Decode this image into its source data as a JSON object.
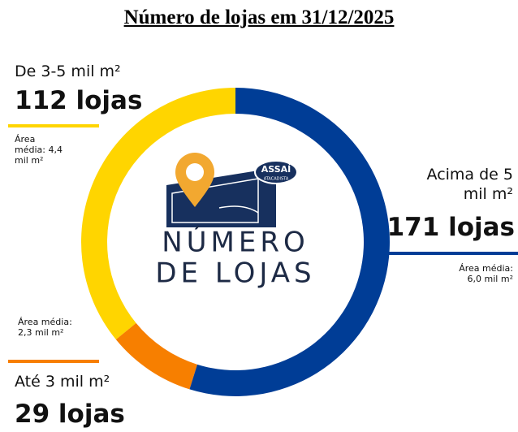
{
  "chart_data": {
    "type": "donut",
    "title": "Número de lojas em 31/12/2025",
    "categories": [
      "Acima de 5 mil m²",
      "Até 3 mil m²",
      "De 3-5 mil m²"
    ],
    "values": [
      171,
      29,
      112
    ],
    "value_labels": [
      "171 lojas",
      "29 lojas",
      "112 lojas"
    ],
    "annotations": [
      "Área média: 6,0 mil m²",
      "Área média: 2,3 mil m²",
      "Área média: 4,4 mil m²"
    ],
    "colors": [
      "#003d96",
      "#f77f00",
      "#ffd500"
    ],
    "center_label": [
      "NÚMERO",
      "DE LOJAS"
    ],
    "logo_text": [
      "ASSAÍ",
      "ATACADISTA"
    ]
  }
}
